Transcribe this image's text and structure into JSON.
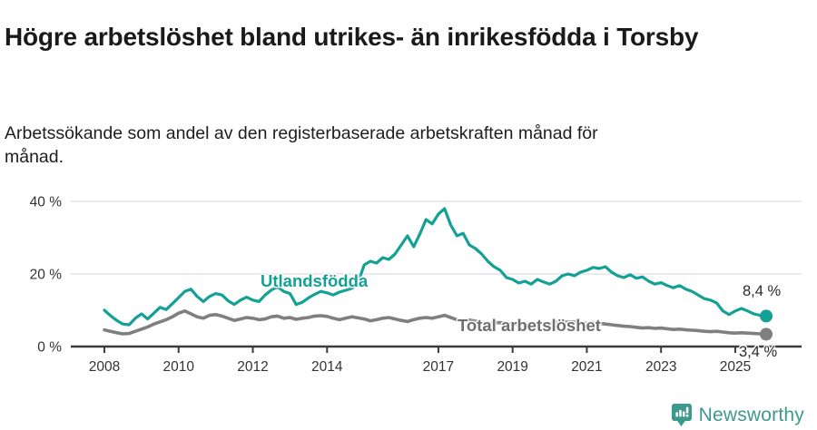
{
  "header": {
    "title": "Högre arbetslöshet bland utrikes- än inrikesfödda i Torsby",
    "subtitle": "Arbetssökande som andel av den registerbaserade arbetskraften månad för månad."
  },
  "chart_data": {
    "type": "line",
    "title": "Högre arbetslöshet bland utrikes- än inrikesfödda i Torsby",
    "subtitle": "Arbetssökande som andel av den registerbaserade arbetskraften månad för månad.",
    "unit": "%",
    "x_start_year": 2008,
    "x_step_months": 2,
    "x_end_approx": "2025-10",
    "ylim": [
      0,
      42
    ],
    "yticks": [
      0,
      20,
      40
    ],
    "ytick_labels": [
      "0 %",
      "20 %",
      "40 %"
    ],
    "xticks": [
      2008,
      2010,
      2012,
      2014,
      2017,
      2019,
      2021,
      2023,
      2025
    ],
    "xtick_labels": [
      "2008",
      "2010",
      "2012",
      "2014",
      "2017",
      "2019",
      "2021",
      "2023",
      "2025"
    ],
    "grid": "horizontal-only",
    "legend_position": "inline-labels-on-chart",
    "series": [
      {
        "name": "Utlandsfödda",
        "color": "#14a195",
        "end_label": "8,4 %",
        "end_value": 8.4,
        "values": [
          10,
          8.5,
          7.2,
          6.2,
          6,
          7.8,
          9,
          7.6,
          9.2,
          10.8,
          10.2,
          11.8,
          13.5,
          15.2,
          15.8,
          13.8,
          12.4,
          13.8,
          14.6,
          14.2,
          12.6,
          11.6,
          12.8,
          13.6,
          12.8,
          12.4,
          14.2,
          15.6,
          16.4,
          15.2,
          14.6,
          11.6,
          12.2,
          13.4,
          14.4,
          15.2,
          14.8,
          14.2,
          15,
          15.5,
          16,
          17.5,
          22.5,
          23.5,
          23,
          24.5,
          24,
          25.5,
          28,
          30.5,
          27.5,
          31,
          35,
          33.8,
          36.5,
          38,
          33.5,
          30.5,
          31.2,
          28,
          27,
          25.5,
          23.5,
          22,
          21,
          19,
          18.5,
          17.5,
          18,
          17.2,
          18.5,
          17.8,
          17.2,
          18,
          19.5,
          20,
          19.5,
          20.5,
          21,
          21.8,
          21.5,
          22,
          20.5,
          19.5,
          19,
          19.8,
          18.8,
          19.2,
          18,
          17.2,
          17.6,
          16.8,
          16.2,
          16.8,
          15.8,
          15.2,
          14.2,
          13.2,
          12.8,
          12,
          9.8,
          8.8,
          9.8,
          10.5,
          9.8,
          9,
          8.6,
          8.4
        ]
      },
      {
        "name": "Total arbetslöshet",
        "color": "#7f7f7f",
        "end_label": "3,4 %",
        "end_value": 3.4,
        "values": [
          4.6,
          4.2,
          3.8,
          3.5,
          3.6,
          4.2,
          4.8,
          5.4,
          6.2,
          6.8,
          7.4,
          8.2,
          9.2,
          9.8,
          9,
          8.2,
          7.8,
          8.6,
          8.8,
          8.4,
          7.8,
          7.2,
          7.6,
          8,
          7.8,
          7.4,
          7.6,
          8.2,
          8.4,
          7.8,
          8,
          7.5,
          7.8,
          8,
          8.4,
          8.5,
          8.3,
          7.8,
          7.4,
          7.8,
          8.2,
          7.9,
          7.6,
          7.1,
          7.4,
          7.8,
          8,
          7.6,
          7.2,
          6.9,
          7.4,
          7.8,
          8,
          7.8,
          8.2,
          8.6,
          8,
          7.4,
          7,
          7.3,
          7,
          6.6,
          6.3,
          6.5,
          6.6,
          6.4,
          6.2,
          6,
          6.2,
          6,
          6.2,
          6.4,
          6.3,
          6.6,
          6.8,
          6.7,
          6.8,
          6.6,
          6.4,
          6.6,
          6.4,
          6.2,
          6,
          5.8,
          5.6,
          5.5,
          5.3,
          5.1,
          5.2,
          5,
          5.1,
          4.9,
          4.7,
          4.8,
          4.6,
          4.5,
          4.4,
          4.2,
          4.1,
          4.2,
          4,
          3.8,
          3.7,
          3.8,
          3.7,
          3.6,
          3.5,
          3.4
        ]
      }
    ]
  },
  "colors": {
    "accent_teal": "#14a195",
    "line_gray": "#7f7f7f",
    "axis": "#3b3b3b",
    "gridline": "#e3e3e3",
    "tick_text": "#333333",
    "series_label_gray": "#6f6f6f"
  },
  "footer": {
    "brand": "Newsworthy",
    "brand_color": "#3c9a8c",
    "logo_icon": "bar-chart-speech-bubble-icon"
  }
}
